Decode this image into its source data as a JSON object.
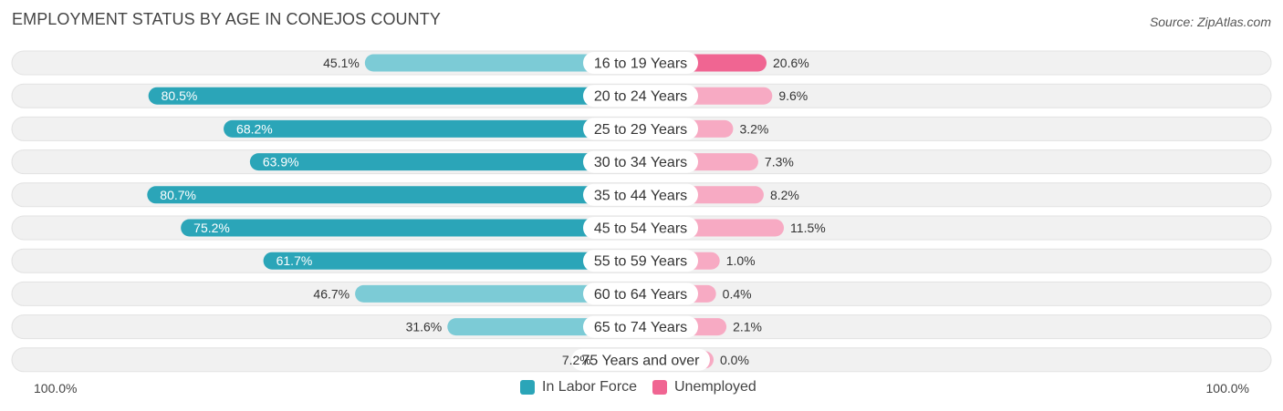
{
  "header": {
    "title": "EMPLOYMENT STATUS BY AGE IN CONEJOS COUNTY",
    "source": "Source: ZipAtlas.com"
  },
  "colors": {
    "labor_strong": "#2ba5b8",
    "labor_light": "#7ccbd6",
    "unemp_strong": "#f06592",
    "unemp_light": "#f7aac3",
    "row_bg": "#f1f1f1",
    "row_border": "#e2e2e2"
  },
  "legend": {
    "labor_label": "In Labor Force",
    "unemployed_label": "Unemployed"
  },
  "axis": {
    "left_label": "100.0%",
    "right_label": "100.0%"
  },
  "chart_data": {
    "type": "bar",
    "orientation": "horizontal-diverging",
    "title": "EMPLOYMENT STATUS BY AGE IN CONEJOS COUNTY",
    "categories": [
      "16 to 19 Years",
      "20 to 24 Years",
      "25 to 29 Years",
      "30 to 34 Years",
      "35 to 44 Years",
      "45 to 54 Years",
      "55 to 59 Years",
      "60 to 64 Years",
      "65 to 74 Years",
      "75 Years and over"
    ],
    "series": [
      {
        "name": "In Labor Force",
        "values": [
          45.1,
          80.5,
          68.2,
          63.9,
          80.7,
          75.2,
          61.7,
          46.7,
          31.6,
          7.2
        ],
        "labels": [
          "45.1%",
          "80.5%",
          "68.2%",
          "63.9%",
          "80.7%",
          "75.2%",
          "61.7%",
          "46.7%",
          "31.6%",
          "7.2%"
        ]
      },
      {
        "name": "Unemployed",
        "values": [
          20.6,
          9.6,
          3.2,
          7.3,
          8.2,
          11.5,
          1.0,
          0.4,
          2.1,
          0.0
        ],
        "labels": [
          "20.6%",
          "9.6%",
          "3.2%",
          "7.3%",
          "8.2%",
          "11.5%",
          "1.0%",
          "0.4%",
          "2.1%",
          "0.0%"
        ]
      }
    ],
    "xlim_left": [
      0,
      100
    ],
    "xlim_right": [
      0,
      100
    ],
    "legend_position": "bottom-center"
  }
}
